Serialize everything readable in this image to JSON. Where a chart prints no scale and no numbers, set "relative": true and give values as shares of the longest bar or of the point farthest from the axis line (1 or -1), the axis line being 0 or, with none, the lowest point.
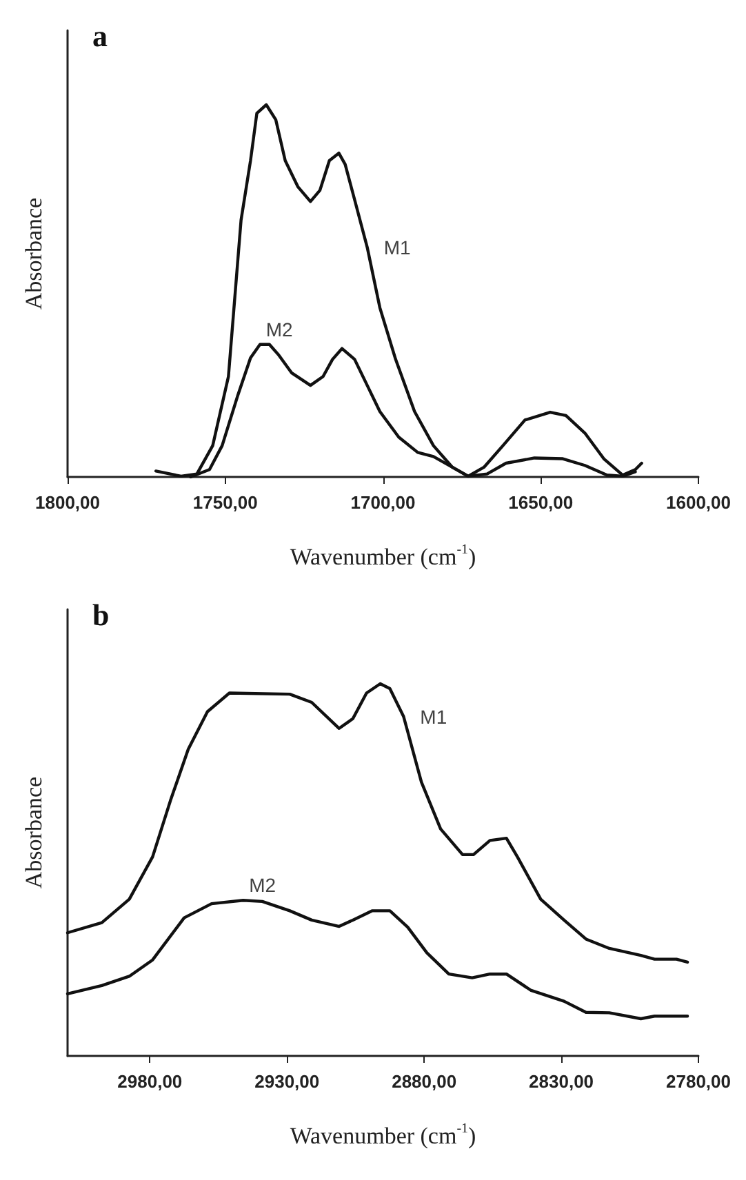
{
  "chart_data": [
    {
      "type": "line",
      "title": "a",
      "xlabel": "Wavenumber (cm$^{-1}$)",
      "ylabel": "Absorbance",
      "relative": true,
      "grid": false,
      "legend": false,
      "marker": "none",
      "line_style": "solid",
      "xlim": [
        1800,
        1600
      ],
      "xticks": [
        {
          "value": 1800,
          "label": "1800,00"
        },
        {
          "value": 1750,
          "label": "1750,00"
        },
        {
          "value": 1700,
          "label": "1700,00"
        },
        {
          "value": 1650,
          "label": "1650,00"
        },
        {
          "value": 1600,
          "label": "1600,00"
        }
      ],
      "series": [
        {
          "name": "M1",
          "color": "#111111",
          "x": [
            1772,
            1764,
            1759,
            1754,
            1749,
            1745,
            1742,
            1740,
            1737,
            1734,
            1731,
            1727,
            1723,
            1720,
            1717,
            1714,
            1712,
            1709,
            1705,
            1701,
            1696,
            1690,
            1684,
            1678,
            1673,
            1668,
            1662,
            1655,
            1647,
            1642,
            1636,
            1630,
            1624,
            1620,
            1618
          ],
          "values": [
            0.016,
            0.002,
            0.008,
            0.084,
            0.27,
            0.69,
            0.85,
            0.977,
            1.0,
            0.96,
            0.85,
            0.78,
            0.74,
            0.77,
            0.85,
            0.87,
            0.84,
            0.745,
            0.617,
            0.455,
            0.316,
            0.176,
            0.084,
            0.026,
            0.002,
            0.026,
            0.084,
            0.153,
            0.174,
            0.165,
            0.118,
            0.049,
            0.005,
            0.02,
            0.037
          ]
        },
        {
          "name": "M2",
          "color": "#111111",
          "x": [
            1761,
            1755,
            1751,
            1746,
            1742,
            1739,
            1736,
            1733,
            1729,
            1723,
            1719,
            1716,
            1713,
            1709,
            1705,
            1701,
            1695,
            1689,
            1684,
            1678,
            1673,
            1667,
            1661,
            1652,
            1643,
            1636,
            1629,
            1624,
            1620
          ],
          "values": [
            0.0,
            0.02,
            0.084,
            0.22,
            0.32,
            0.356,
            0.356,
            0.327,
            0.28,
            0.246,
            0.27,
            0.316,
            0.345,
            0.316,
            0.246,
            0.176,
            0.107,
            0.066,
            0.055,
            0.026,
            0.002,
            0.008,
            0.037,
            0.051,
            0.049,
            0.031,
            0.005,
            0.002,
            0.014
          ]
        }
      ]
    },
    {
      "type": "line",
      "title": "b",
      "xlabel": "Wavenumber (cm$^{-1}$)",
      "ylabel": "Absorbance",
      "relative": true,
      "grid": false,
      "legend": false,
      "marker": "none",
      "line_style": "solid",
      "xlim": [
        3010,
        2780
      ],
      "xticks": [
        {
          "value": 2980,
          "label": "2980,00"
        },
        {
          "value": 2930,
          "label": "2930,00"
        },
        {
          "value": 2880,
          "label": "2880,00"
        },
        {
          "value": 2830,
          "label": "2830,00"
        },
        {
          "value": 2780,
          "label": "2780,00"
        }
      ],
      "series": [
        {
          "name": "M1",
          "color": "#111111",
          "x": [
            3010,
            2997.5,
            2987.5,
            2979,
            2972.5,
            2966,
            2959,
            2951,
            2929,
            2921,
            2911,
            2906,
            2901,
            2896,
            2892.5,
            2887.5,
            2881,
            2874,
            2866,
            2862,
            2856,
            2850,
            2846,
            2837.5,
            2829,
            2821,
            2812.5,
            2801,
            2796,
            2788,
            2784
          ],
          "values": [
            0.331,
            0.358,
            0.421,
            0.535,
            0.686,
            0.824,
            0.925,
            0.975,
            0.972,
            0.95,
            0.88,
            0.906,
            0.975,
            1.0,
            0.987,
            0.912,
            0.736,
            0.61,
            0.541,
            0.541,
            0.579,
            0.585,
            0.535,
            0.421,
            0.365,
            0.314,
            0.289,
            0.27,
            0.26,
            0.26,
            0.252
          ]
        },
        {
          "name": "M2",
          "color": "#111111",
          "x": [
            3010,
            2997.5,
            2987.5,
            2979,
            2967.5,
            2957.5,
            2946,
            2939,
            2929,
            2921,
            2911,
            2906,
            2899,
            2892.5,
            2886,
            2879,
            2871,
            2862.5,
            2856,
            2850,
            2841,
            2829,
            2821,
            2812.5,
            2801,
            2796,
            2784
          ],
          "values": [
            0.167,
            0.189,
            0.214,
            0.258,
            0.371,
            0.409,
            0.418,
            0.415,
            0.39,
            0.365,
            0.348,
            0.365,
            0.39,
            0.39,
            0.346,
            0.277,
            0.22,
            0.21,
            0.22,
            0.22,
            0.176,
            0.147,
            0.117,
            0.116,
            0.1,
            0.107,
            0.107
          ]
        }
      ]
    }
  ]
}
